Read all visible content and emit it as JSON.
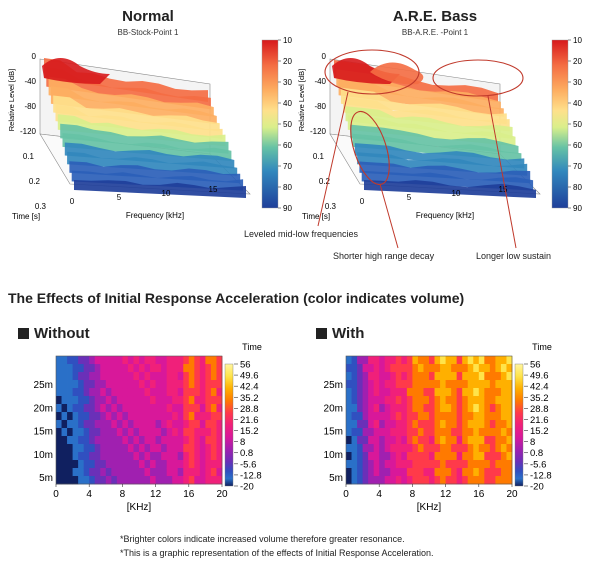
{
  "top": {
    "left": {
      "title": "Normal",
      "subtitle": "BB-Stock-Point 1"
    },
    "right": {
      "title": "A.R.E. Bass",
      "subtitle": "BB-A.R.E. -Point 1"
    },
    "axes": {
      "z_label": "Relative Level [dB]",
      "z_ticks": [
        "0",
        "-40",
        "-80",
        "-120"
      ],
      "t_label": "Time [s]",
      "t_ticks": [
        "0.1",
        "0.2",
        "0.3"
      ],
      "f_label": "Frequency [kHz]",
      "f_ticks": [
        "0",
        "5",
        "10",
        "15"
      ]
    },
    "colorbar": {
      "ticks": [
        "10",
        "20",
        "30",
        "40",
        "50",
        "60",
        "70",
        "80",
        "90"
      ],
      "colors": [
        "#d7191c",
        "#f46d43",
        "#fdae61",
        "#fee08b",
        "#d9ef8b",
        "#66c2a5",
        "#3288bd",
        "#2b5fb8",
        "#1f3f9a"
      ]
    },
    "callouts": {
      "leveled": "Leveled mid-low frequencies",
      "shorter": "Shorter high range decay",
      "longer": "Longer low sustain"
    }
  },
  "bottom": {
    "title": "The Effects of Initial Response Acceleration (color indicates volume)",
    "without_label": "Without",
    "with_label": "With",
    "time_label": "Time",
    "footnote1": "*Brighter colors indicate increased volume therefore greater resonance.",
    "footnote2": "*This is a graphic representation of the effects of Initial Response Acceleration.",
    "colorbar": {
      "ticks": [
        "56",
        "49.6",
        "42.4",
        "35.2",
        "28.8",
        "21.6",
        "15.2",
        "8",
        "0.8",
        "-5.6",
        "-12.8",
        "-20"
      ],
      "colors": [
        "#fff5a0",
        "#ffe44a",
        "#ffb000",
        "#ff7a00",
        "#ff3a4a",
        "#f0207a",
        "#d8189a",
        "#a020b0",
        "#6a30b8",
        "#3050c0",
        "#2a70c8",
        "#102060"
      ]
    }
  },
  "chart_data": [
    {
      "type": "surface3d",
      "title": "Normal",
      "subtitle": "BB-Stock-Point 1",
      "xlabel": "Frequency [kHz]",
      "ylabel": "Time [s]",
      "zlabel": "Relative Level [dB]",
      "xlim": [
        0,
        17
      ],
      "ylim": [
        0,
        0.3
      ],
      "zlim": [
        -120,
        0
      ],
      "xticks": [
        0,
        5,
        10,
        15
      ],
      "yticks": [
        0.1,
        0.2,
        0.3
      ],
      "zticks": [
        0,
        -40,
        -80,
        -120
      ],
      "colorbar_ticks": [
        10,
        20,
        30,
        40,
        50,
        60,
        70,
        80,
        90
      ]
    },
    {
      "type": "surface3d",
      "title": "A.R.E. Bass",
      "subtitle": "BB-A.R.E. -Point 1",
      "xlabel": "Frequency [kHz]",
      "ylabel": "Time [s]",
      "zlabel": "Relative Level [dB]",
      "xlim": [
        0,
        17
      ],
      "ylim": [
        0,
        0.3
      ],
      "zlim": [
        -120,
        0
      ],
      "xticks": [
        0,
        5,
        10,
        15
      ],
      "yticks": [
        0.1,
        0.2,
        0.3
      ],
      "zticks": [
        0,
        -40,
        -80,
        -120
      ],
      "annotations": [
        "Leveled mid-low frequencies",
        "Shorter high range decay",
        "Longer low sustain"
      ],
      "colorbar_ticks": [
        10,
        20,
        30,
        40,
        50,
        60,
        70,
        80,
        90
      ]
    },
    {
      "type": "heatmap",
      "title": "Without",
      "xlabel": "[KHz]",
      "ylabel": "Time",
      "xticks": [
        0,
        4,
        8,
        12,
        16,
        20
      ],
      "ytick_labels": [
        "5m",
        "10m",
        "15m",
        "20m",
        "25m"
      ],
      "xlim": [
        0,
        20
      ],
      "ylim": [
        0,
        30
      ],
      "column_levels": [
        0.9,
        1.1,
        1.3,
        1.6,
        2.2,
        2.8,
        3.3,
        3.8,
        4.4,
        4.6,
        4.5,
        4.6,
        4.9,
        4.8,
        4.9,
        5.0,
        5.2,
        5.3,
        5.1,
        4.8,
        5.4,
        5.6,
        5.4,
        6.9,
        7.1,
        6.3,
        5.8,
        6.7,
        7.0,
        6.4
      ],
      "colorbar_ticks": [
        56,
        49.6,
        42.4,
        35.2,
        28.8,
        21.6,
        15.2,
        8,
        0.8,
        -5.6,
        -12.8,
        -20
      ]
    },
    {
      "type": "heatmap",
      "title": "With",
      "xlabel": "[KHz]",
      "ylabel": "Time",
      "xticks": [
        0,
        4,
        8,
        12,
        16,
        20
      ],
      "ytick_labels": [
        "5m",
        "10m",
        "15m",
        "20m",
        "25m"
      ],
      "xlim": [
        0,
        20
      ],
      "ylim": [
        0,
        30
      ],
      "column_levels": [
        1.6,
        2.2,
        3.0,
        4.2,
        5.0,
        5.4,
        4.6,
        5.2,
        5.8,
        6.4,
        6.2,
        6.8,
        7.4,
        7.8,
        7.2,
        6.8,
        7.9,
        8.4,
        8.3,
        7.6,
        7.0,
        7.8,
        8.6,
        8.8,
        8.5,
        7.8,
        7.4,
        8.2,
        8.7,
        8.5
      ],
      "colorbar_ticks": [
        56,
        49.6,
        42.4,
        35.2,
        28.8,
        21.6,
        15.2,
        8,
        0.8,
        -5.6,
        -12.8,
        -20
      ]
    }
  ]
}
